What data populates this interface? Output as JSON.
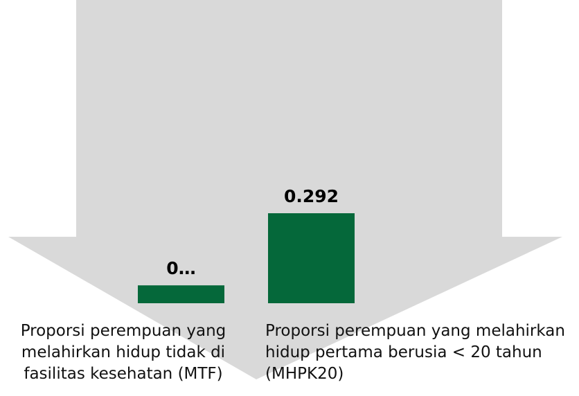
{
  "chart_data": {
    "type": "bar",
    "categories": [
      "Proporsi perempuan yang melahirkan hidup tidak di fasilitas kesehatan (MTF)",
      "Proporsi perempuan yang melahirkan hidup pertama berusia < 20 tahun (MHPK20)"
    ],
    "values": [
      0.058,
      0.292
    ],
    "value_labels": [
      "0…",
      "0.292"
    ],
    "color": "#05683a"
  }
}
